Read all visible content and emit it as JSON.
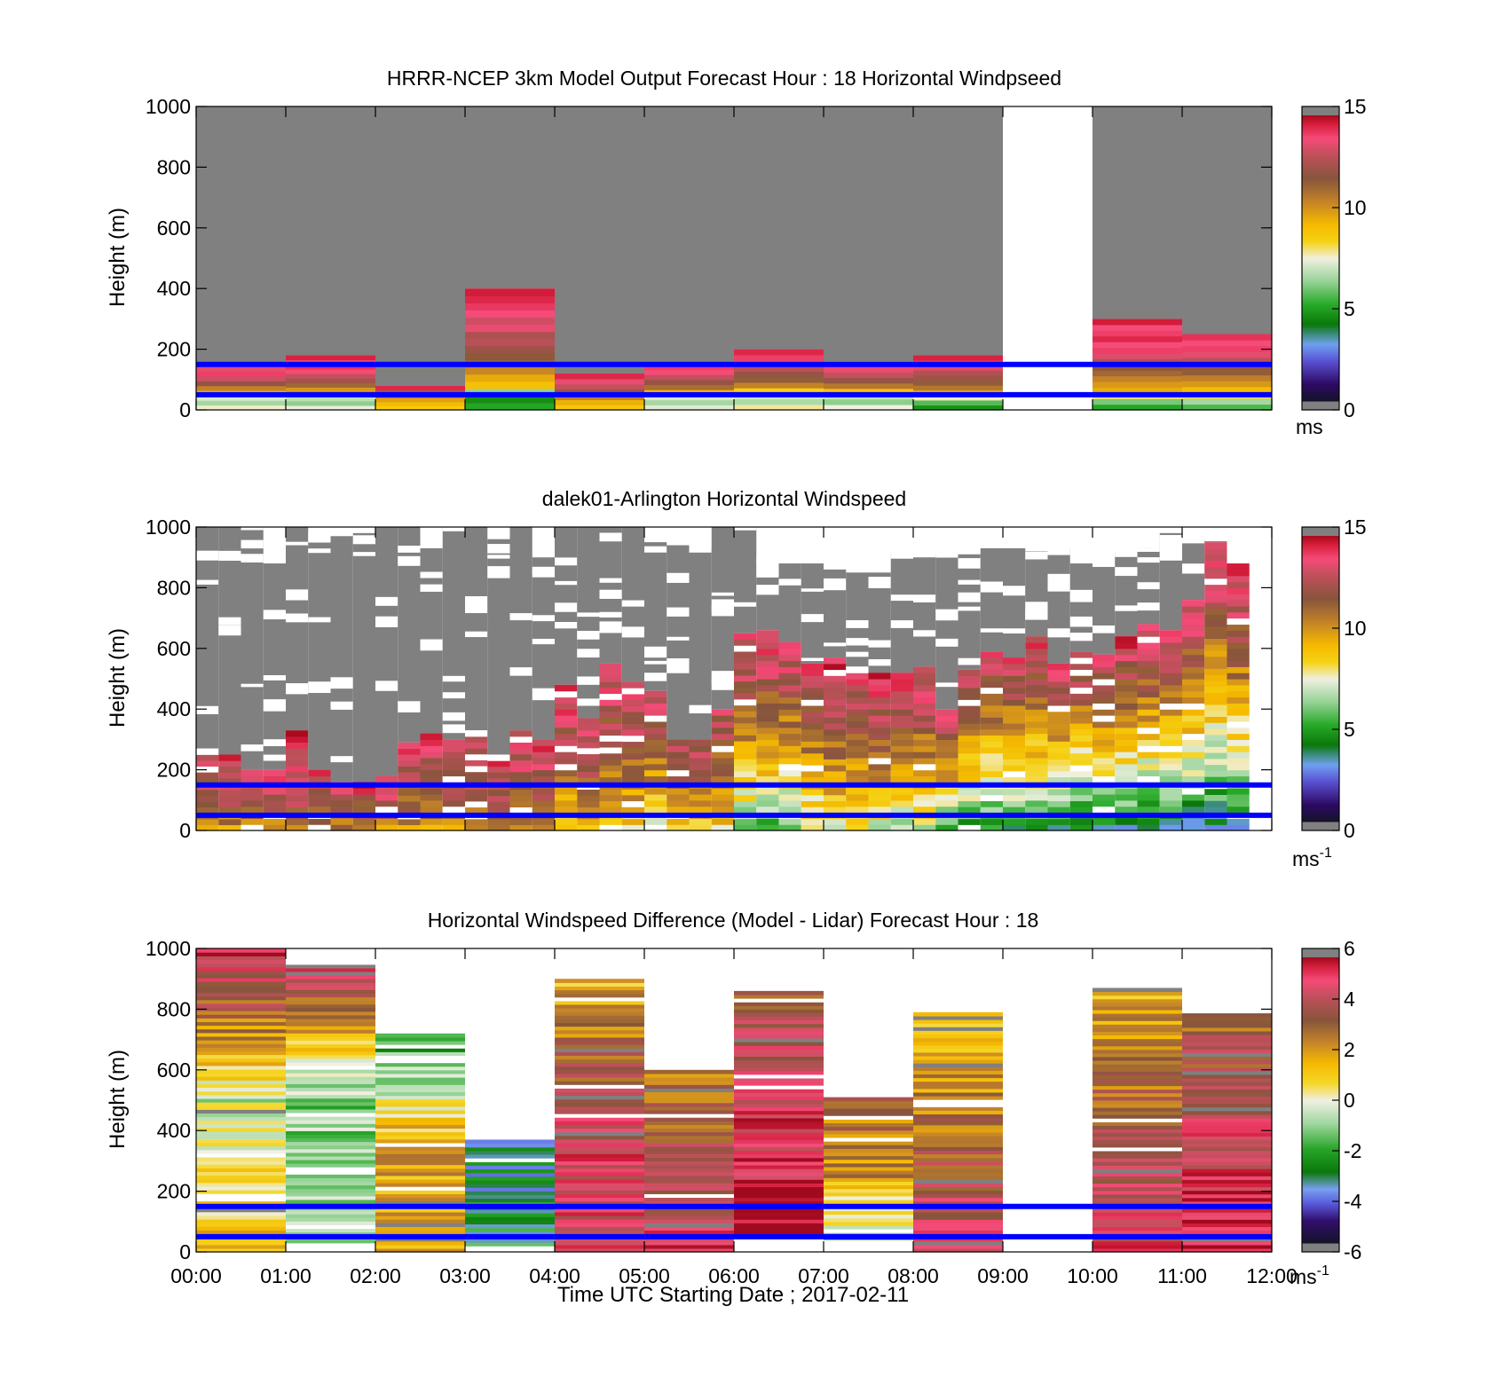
{
  "chart_data": [
    {
      "type": "heatmap",
      "title": "HRRR-NCEP 3km Model Output   Forecast Hour : 18 Horizontal Windpseed",
      "ylabel": "Height (m)",
      "xlabel": "",
      "xlim": [
        0,
        12
      ],
      "ylim": [
        0,
        1000
      ],
      "yticks": [
        0,
        200,
        400,
        600,
        800,
        1000
      ],
      "xticks": [
        "00:00",
        "01:00",
        "02:00",
        "03:00",
        "04:00",
        "05:00",
        "06:00",
        "07:00",
        "08:00",
        "09:00",
        "10:00",
        "11:00",
        "12:00"
      ],
      "show_xtick_labels": false,
      "colorbar": {
        "ticks": [
          0,
          5,
          10,
          15
        ],
        "unit": "ms",
        "unit_sup": "",
        "range": [
          0,
          15
        ],
        "palette": "speed"
      },
      "gray_above_data": true,
      "reference_lines": [
        {
          "height": 150,
          "color": "#0000ff"
        },
        {
          "height": 50,
          "color": "#0000ff"
        }
      ],
      "columns": [
        {
          "t0": 0,
          "t1": 1,
          "top": 160,
          "values": [
            7.6,
            6.5,
            7.2,
            9.0,
            10.5,
            12.0,
            13.2,
            14.0,
            13.5,
            14.4
          ]
        },
        {
          "t0": 1,
          "t1": 2,
          "top": 180,
          "values": [
            7.4,
            6.2,
            6.8,
            8.8,
            10.0,
            11.2,
            12.3,
            13.0,
            13.8,
            14.2,
            13.8,
            14.5
          ]
        },
        {
          "t0": 2,
          "t1": 3,
          "top": 80,
          "values": [
            8.6,
            9.2,
            9.8,
            10.6,
            12.5,
            14.4
          ]
        },
        {
          "t0": 3,
          "t1": 4,
          "top": 400,
          "values": [
            5.0,
            4.5,
            6.3,
            9.0,
            9.6,
            10.4,
            11.2,
            11.6,
            12.2,
            12.8,
            12.5,
            13.6,
            13.2,
            13.8,
            14.1,
            14.4,
            14.6
          ]
        },
        {
          "t0": 4,
          "t1": 5,
          "top": 120,
          "values": [
            8.8,
            9.5,
            10.6,
            12.0,
            13.0,
            13.6,
            14.4
          ]
        },
        {
          "t0": 5,
          "t1": 6,
          "top": 150,
          "values": [
            7.3,
            6.5,
            7.2,
            9.0,
            11.0,
            12.0,
            13.0,
            13.8,
            14.0
          ]
        },
        {
          "t0": 6,
          "t1": 7,
          "top": 200,
          "values": [
            7.8,
            6.6,
            7.0,
            8.5,
            10.5,
            11.5,
            12.0,
            12.8,
            13.6,
            14.0,
            14.4
          ]
        },
        {
          "t0": 7,
          "t1": 8,
          "top": 160,
          "values": [
            7.5,
            6.2,
            6.8,
            9.0,
            10.8,
            12.0,
            13.0,
            13.6,
            14.0
          ]
        },
        {
          "t0": 8,
          "t1": 9,
          "top": 180,
          "values": [
            4.6,
            5.6,
            7.6,
            9.5,
            10.8,
            11.5,
            12.2,
            12.6,
            13.4,
            14.0,
            14.5
          ]
        },
        {
          "t0": 9,
          "t1": 10,
          "top": 0,
          "values": []
        },
        {
          "t0": 10,
          "t1": 11,
          "top": 300,
          "values": [
            5.0,
            6.0,
            8.0,
            9.6,
            10.0,
            10.5,
            11.2,
            11.8,
            12.6,
            13.4,
            14.0,
            13.8,
            14.4,
            14.0,
            13.8,
            14.6
          ]
        },
        {
          "t0": 11,
          "t1": 12,
          "top": 250,
          "values": [
            5.5,
            6.5,
            8.2,
            9.2,
            10.0,
            10.6,
            11.5,
            12.0,
            12.8,
            13.5,
            14.0,
            13.8,
            14.2
          ]
        }
      ]
    },
    {
      "type": "heatmap",
      "title": "dalek01-Arlington  Horizontal Windspeed",
      "ylabel": "Height (m)",
      "xlabel": "",
      "xlim": [
        0,
        12
      ],
      "ylim": [
        0,
        1000
      ],
      "yticks": [
        0,
        200,
        400,
        600,
        800,
        1000
      ],
      "xticks": [
        "00:00",
        "01:00",
        "02:00",
        "03:00",
        "04:00",
        "05:00",
        "06:00",
        "07:00",
        "08:00",
        "09:00",
        "10:00",
        "11:00",
        "12:00"
      ],
      "show_xtick_labels": false,
      "colorbar": {
        "ticks": [
          0,
          5,
          10,
          15
        ],
        "unit": "ms",
        "unit_sup": "-1",
        "range": [
          0,
          15
        ],
        "palette": "speed"
      },
      "reference_lines": [
        {
          "height": 150,
          "color": "#0000ff"
        },
        {
          "height": 50,
          "color": "#0000ff"
        }
      ],
      "profile_interval_hours": 0.25,
      "profiles": [
        {
          "top": 270,
          "gray_top": 1000,
          "s0": 10.0,
          "s1": 14.0
        },
        {
          "top": 250,
          "gray_top": 1000,
          "s0": 10.0,
          "s1": 14.0
        },
        {
          "top": 200,
          "gray_top": 1000,
          "s0": 10.0,
          "s1": 14.0
        },
        {
          "top": 200,
          "gray_top": 880,
          "s0": 10.0,
          "s1": 14.0
        },
        {
          "top": 330,
          "gray_top": 1000,
          "s0": 11.0,
          "s1": 14.5
        },
        {
          "top": 200,
          "gray_top": 960,
          "s0": 10.0,
          "s1": 14.0
        },
        {
          "top": 160,
          "gray_top": 970,
          "s0": 10.0,
          "s1": 14.0
        },
        {
          "top": 160,
          "gray_top": 980,
          "s0": 10.0,
          "s1": 14.0
        },
        {
          "top": 180,
          "gray_top": 1000,
          "s0": 10.0,
          "s1": 14.0
        },
        {
          "top": 290,
          "gray_top": 1000,
          "s0": 10.0,
          "s1": 14.0
        },
        {
          "top": 320,
          "gray_top": 930,
          "s0": 10.0,
          "s1": 14.0
        },
        {
          "top": 300,
          "gray_top": 1000,
          "s0": 10.0,
          "s1": 14.0
        },
        {
          "top": 330,
          "gray_top": 1000,
          "s0": 10.0,
          "s1": 14.0
        },
        {
          "top": 250,
          "gray_top": 960,
          "s0": 10.0,
          "s1": 14.0
        },
        {
          "top": 330,
          "gray_top": 1000,
          "s0": 10.0,
          "s1": 14.0
        },
        {
          "top": 300,
          "gray_top": 900,
          "s0": 10.0,
          "s1": 14.0
        },
        {
          "top": 480,
          "gray_top": 1000,
          "s0": 8.5,
          "s1": 14.0
        },
        {
          "top": 370,
          "gray_top": 1000,
          "s0": 9.0,
          "s1": 14.0
        },
        {
          "top": 550,
          "gray_top": 1000,
          "s0": 8.0,
          "s1": 14.0
        },
        {
          "top": 490,
          "gray_top": 1000,
          "s0": 8.0,
          "s1": 14.0
        },
        {
          "top": 460,
          "gray_top": 950,
          "s0": 7.5,
          "s1": 13.5
        },
        {
          "top": 300,
          "gray_top": 940,
          "s0": 8.0,
          "s1": 13.0
        },
        {
          "top": 300,
          "gray_top": 930,
          "s0": 8.0,
          "s1": 13.0
        },
        {
          "top": 400,
          "gray_top": 1000,
          "s0": 8.0,
          "s1": 13.0
        },
        {
          "top": 650,
          "gray_top": 1000,
          "s0": 5.5,
          "s1": 14.0
        },
        {
          "top": 660,
          "gray_top": 900,
          "s0": 5.0,
          "s1": 14.5
        },
        {
          "top": 620,
          "gray_top": 880,
          "s0": 5.0,
          "s1": 14.0
        },
        {
          "top": 550,
          "gray_top": 880,
          "s0": 6.5,
          "s1": 14.0
        },
        {
          "top": 570,
          "gray_top": 860,
          "s0": 7.0,
          "s1": 14.5
        },
        {
          "top": 540,
          "gray_top": 850,
          "s0": 7.0,
          "s1": 14.0
        },
        {
          "top": 520,
          "gray_top": 850,
          "s0": 7.0,
          "s1": 14.0
        },
        {
          "top": 520,
          "gray_top": 920,
          "s0": 6.5,
          "s1": 14.0
        },
        {
          "top": 540,
          "gray_top": 900,
          "s0": 6.5,
          "s1": 14.0
        },
        {
          "top": 400,
          "gray_top": 910,
          "s0": 5.0,
          "s1": 13.5
        },
        {
          "top": 530,
          "gray_top": 910,
          "s0": 4.5,
          "s1": 13.5
        },
        {
          "top": 590,
          "gray_top": 930,
          "s0": 4.0,
          "s1": 13.5
        },
        {
          "top": 570,
          "gray_top": 930,
          "s0": 4.0,
          "s1": 13.5
        },
        {
          "top": 640,
          "gray_top": 920,
          "s0": 4.0,
          "s1": 14.0
        },
        {
          "top": 550,
          "gray_top": 930,
          "s0": 4.0,
          "s1": 13.5
        },
        {
          "top": 590,
          "gray_top": 880,
          "s0": 3.5,
          "s1": 13.5
        },
        {
          "top": 580,
          "gray_top": 870,
          "s0": 3.5,
          "s1": 13.5
        },
        {
          "top": 640,
          "gray_top": 920,
          "s0": 3.5,
          "s1": 14.0
        },
        {
          "top": 680,
          "gray_top": 930,
          "s0": 3.5,
          "s1": 14.0
        },
        {
          "top": 660,
          "gray_top": 980,
          "s0": 3.0,
          "s1": 14.0
        },
        {
          "top": 760,
          "gray_top": 960,
          "s0": 3.0,
          "s1": 14.0
        },
        {
          "top": 950,
          "gray_top": 960,
          "s0": 3.0,
          "s1": 14.5
        },
        {
          "top": 880,
          "gray_top": 880,
          "s0": 3.0,
          "s1": 14.5
        }
      ]
    },
    {
      "type": "heatmap",
      "title": "Horizontal Windspeed Difference (Model - Lidar) Forecast Hour : 18",
      "ylabel": "Height (m)",
      "xlabel": "Time UTC  Starting Date ; 2017-02-11",
      "xlim": [
        0,
        12
      ],
      "ylim": [
        0,
        1000
      ],
      "yticks": [
        0,
        200,
        400,
        600,
        800,
        1000
      ],
      "xticks": [
        "00:00",
        "01:00",
        "02:00",
        "03:00",
        "04:00",
        "05:00",
        "06:00",
        "07:00",
        "08:00",
        "09:00",
        "10:00",
        "11:00",
        "12:00"
      ],
      "show_xtick_labels": true,
      "colorbar": {
        "ticks": [
          -6,
          -4,
          -2,
          0,
          2,
          4,
          6
        ],
        "unit": "ms",
        "unit_sup": "-1",
        "range": [
          -6,
          6
        ],
        "palette": "diff"
      },
      "reference_lines": [
        {
          "height": 150,
          "color": "#0000ff"
        },
        {
          "height": 50,
          "color": "#0000ff"
        }
      ],
      "columns": [
        {
          "t0": 0,
          "t1": 1,
          "bottom": 0,
          "top": 1000,
          "v_bottom": 1.6,
          "v_top": 5.5,
          "v_mid": -0.3
        },
        {
          "t0": 1,
          "t1": 2,
          "bottom": 30,
          "top": 960,
          "v_bottom": -0.5,
          "v_top": 5.0,
          "v_mid": -1.2
        },
        {
          "t0": 2,
          "t1": 3,
          "bottom": 0,
          "top": 720,
          "v_bottom": 2.0,
          "v_top": -2.5,
          "v_mid": 1.8
        },
        {
          "t0": 3,
          "t1": 4,
          "bottom": 20,
          "top": 370,
          "v_bottom": -2.5,
          "v_top": -3.5,
          "v_mid": -3.0
        },
        {
          "t0": 4,
          "t1": 5,
          "bottom": 0,
          "top": 900,
          "v_bottom": 5.0,
          "v_top": 1.5,
          "v_mid": 4.5
        },
        {
          "t0": 5,
          "t1": 6,
          "bottom": 0,
          "top": 600,
          "v_bottom": 5.0,
          "v_top": 2.5,
          "v_mid": 4.0
        },
        {
          "t0": 6,
          "t1": 7,
          "bottom": 60,
          "top": 860,
          "v_bottom": 6.0,
          "v_top": 3.5,
          "v_mid": 5.0
        },
        {
          "t0": 7,
          "t1": 8,
          "bottom": 40,
          "top": 510,
          "v_bottom": -1.0,
          "v_top": 3.0,
          "v_mid": 2.5
        },
        {
          "t0": 8,
          "t1": 9,
          "bottom": 0,
          "top": 790,
          "v_bottom": 5.0,
          "v_top": 1.0,
          "v_mid": 3.0
        },
        {
          "t0": 9,
          "t1": 10,
          "bottom": 0,
          "top": 0,
          "v_bottom": 0,
          "v_top": 0,
          "v_mid": 0
        },
        {
          "t0": 10,
          "t1": 11,
          "bottom": 0,
          "top": 870,
          "v_bottom": 5.0,
          "v_top": 1.5,
          "v_mid": 3.5
        },
        {
          "t0": 11,
          "t1": 12,
          "bottom": 0,
          "top": 800,
          "v_bottom": 6.0,
          "v_top": 3.0,
          "v_mid": 4.5
        }
      ]
    }
  ]
}
